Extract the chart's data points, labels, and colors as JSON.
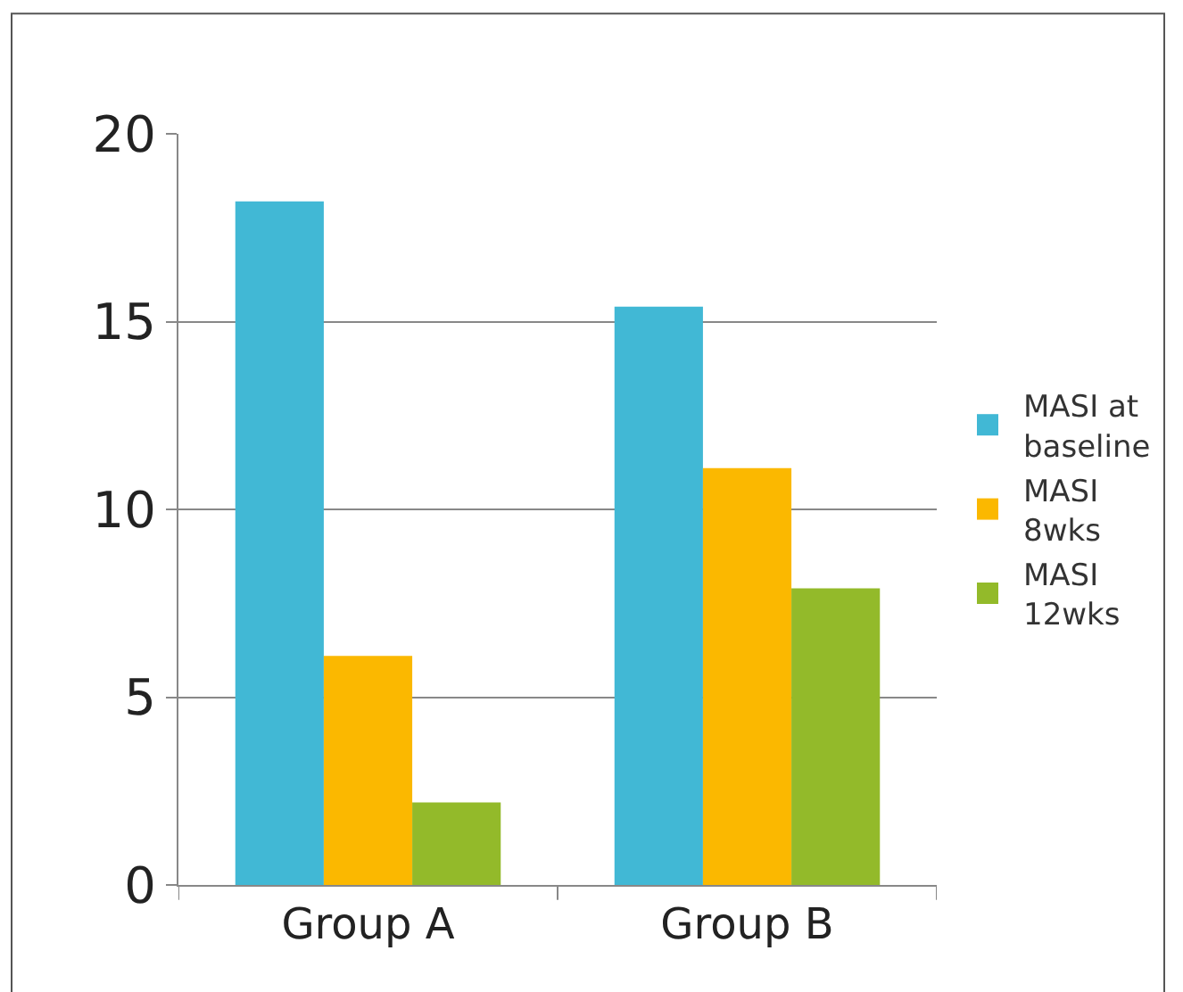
{
  "chart_data": {
    "type": "bar",
    "categories": [
      "Group A",
      "Group B"
    ],
    "series": [
      {
        "name": "MASI at baseline",
        "color": "#41b8d5",
        "values": [
          18.2,
          15.4
        ]
      },
      {
        "name": "MASI 8wks",
        "color": "#fbb800",
        "values": [
          6.1,
          11.1
        ]
      },
      {
        "name": "MASI 12wks",
        "color": "#93ba2a",
        "values": [
          2.2,
          7.9
        ]
      }
    ],
    "ylim": [
      0,
      20
    ],
    "yticks": [
      0,
      5,
      10,
      15,
      20
    ],
    "grid": "y",
    "legend": "right"
  }
}
